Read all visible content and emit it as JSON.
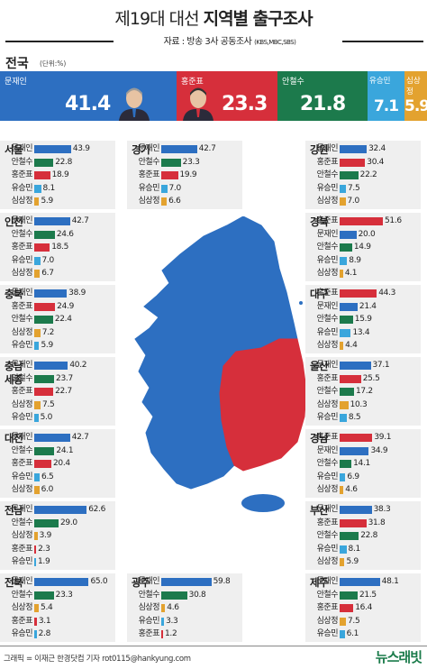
{
  "header": {
    "title_light": "제19대 대선 ",
    "title_bold": "지역별 출구조사",
    "source_prefix": "자료 : 방송 3사 공동조사 ",
    "source_small": "(KBS,MBC,SBS)"
  },
  "candidates": [
    {
      "name": "문재인",
      "color": "#2d6fc1"
    },
    {
      "name": "홍준표",
      "color": "#d62f3b"
    },
    {
      "name": "안철수",
      "color": "#1c7a4c"
    },
    {
      "name": "유승민",
      "color": "#3aa6dc"
    },
    {
      "name": "심상정",
      "color": "#e3a22f"
    }
  ],
  "national": {
    "label": "전국",
    "unit": "(단위:%)",
    "results": [
      {
        "name": "문재인",
        "value": 41.4,
        "display": "41.4"
      },
      {
        "name": "홍준표",
        "value": 23.3,
        "display": "23.3"
      },
      {
        "name": "안철수",
        "value": 21.8,
        "display": "21.8"
      },
      {
        "name": "유승민",
        "value": 7.1,
        "display": "7.1"
      },
      {
        "name": "심상정",
        "value": 5.9,
        "display": "5.9"
      }
    ]
  },
  "chart_data": {
    "type": "bar",
    "unit": "%",
    "regions": [
      {
        "region": "서울",
        "results": [
          [
            "문재인",
            43.9
          ],
          [
            "안철수",
            22.8
          ],
          [
            "홍준표",
            18.9
          ],
          [
            "유승민",
            8.1
          ],
          [
            "심상정",
            5.9
          ]
        ]
      },
      {
        "region": "경기",
        "results": [
          [
            "문재인",
            42.7
          ],
          [
            "안철수",
            23.3
          ],
          [
            "홍준표",
            19.9
          ],
          [
            "유승민",
            7.0
          ],
          [
            "심상정",
            6.6
          ]
        ]
      },
      {
        "region": "강원",
        "results": [
          [
            "문재인",
            32.4
          ],
          [
            "홍준표",
            30.4
          ],
          [
            "안철수",
            22.2
          ],
          [
            "유승민",
            7.5
          ],
          [
            "심상정",
            7.0
          ]
        ]
      },
      {
        "region": "인천",
        "results": [
          [
            "문재인",
            42.7
          ],
          [
            "안철수",
            24.6
          ],
          [
            "홍준표",
            18.5
          ],
          [
            "유승민",
            7.0
          ],
          [
            "심상정",
            6.7
          ]
        ]
      },
      {
        "region": "경북",
        "results": [
          [
            "홍준표",
            51.6
          ],
          [
            "문재인",
            20.0
          ],
          [
            "안철수",
            14.9
          ],
          [
            "유승민",
            8.9
          ],
          [
            "심상정",
            4.1
          ]
        ]
      },
      {
        "region": "충북",
        "results": [
          [
            "문재인",
            38.9
          ],
          [
            "홍준표",
            24.9
          ],
          [
            "안철수",
            22.4
          ],
          [
            "심상정",
            7.2
          ],
          [
            "유승민",
            5.9
          ]
        ]
      },
      {
        "region": "대구",
        "results": [
          [
            "홍준표",
            44.3
          ],
          [
            "문재인",
            21.4
          ],
          [
            "안철수",
            15.9
          ],
          [
            "유승민",
            13.4
          ],
          [
            "심상정",
            4.4
          ]
        ]
      },
      {
        "region": "충남\n세종",
        "results": [
          [
            "문재인",
            40.2
          ],
          [
            "안철수",
            23.7
          ],
          [
            "홍준표",
            22.7
          ],
          [
            "심상정",
            7.5
          ],
          [
            "유승민",
            5.0
          ]
        ]
      },
      {
        "region": "울산",
        "results": [
          [
            "문재인",
            37.1
          ],
          [
            "홍준표",
            25.5
          ],
          [
            "안철수",
            17.2
          ],
          [
            "심상정",
            10.3
          ],
          [
            "유승민",
            8.5
          ]
        ]
      },
      {
        "region": "대전",
        "results": [
          [
            "문재인",
            42.7
          ],
          [
            "안철수",
            24.1
          ],
          [
            "홍준표",
            20.4
          ],
          [
            "유승민",
            6.5
          ],
          [
            "심상정",
            6.0
          ]
        ]
      },
      {
        "region": "경남",
        "results": [
          [
            "홍준표",
            39.1
          ],
          [
            "문재인",
            34.9
          ],
          [
            "안철수",
            14.1
          ],
          [
            "유승민",
            6.9
          ],
          [
            "심상정",
            4.6
          ]
        ]
      },
      {
        "region": "전남",
        "results": [
          [
            "문재인",
            62.6
          ],
          [
            "안철수",
            29.0
          ],
          [
            "심상정",
            3.9
          ],
          [
            "홍준표",
            2.3
          ],
          [
            "유승민",
            1.9
          ]
        ]
      },
      {
        "region": "부산",
        "results": [
          [
            "문재인",
            38.3
          ],
          [
            "홍준표",
            31.8
          ],
          [
            "안철수",
            22.8
          ],
          [
            "유승민",
            8.1
          ],
          [
            "심상정",
            5.9
          ]
        ]
      },
      {
        "region": "전북",
        "results": [
          [
            "문재인",
            65.0
          ],
          [
            "안철수",
            23.3
          ],
          [
            "심상정",
            5.4
          ],
          [
            "홍준표",
            3.1
          ],
          [
            "유승민",
            2.8
          ]
        ]
      },
      {
        "region": "광주",
        "results": [
          [
            "문재인",
            59.8
          ],
          [
            "안철수",
            30.8
          ],
          [
            "심상정",
            4.6
          ],
          [
            "유승민",
            3.3
          ],
          [
            "홍준표",
            1.2
          ]
        ]
      },
      {
        "region": "제주",
        "results": [
          [
            "문재인",
            48.1
          ],
          [
            "안철수",
            21.5
          ],
          [
            "홍준표",
            16.4
          ],
          [
            "심상정",
            7.5
          ],
          [
            "유승민",
            6.1
          ]
        ]
      }
    ]
  },
  "map": {
    "winner_colors": {
      "문재인": "#2d6fc1",
      "홍준표": "#d62f3b"
    }
  },
  "footer": {
    "credit": "그래픽 = 이재근 한경닷컴 기자 rot0115@hankyung.com",
    "logo": "뉴스래빗"
  }
}
